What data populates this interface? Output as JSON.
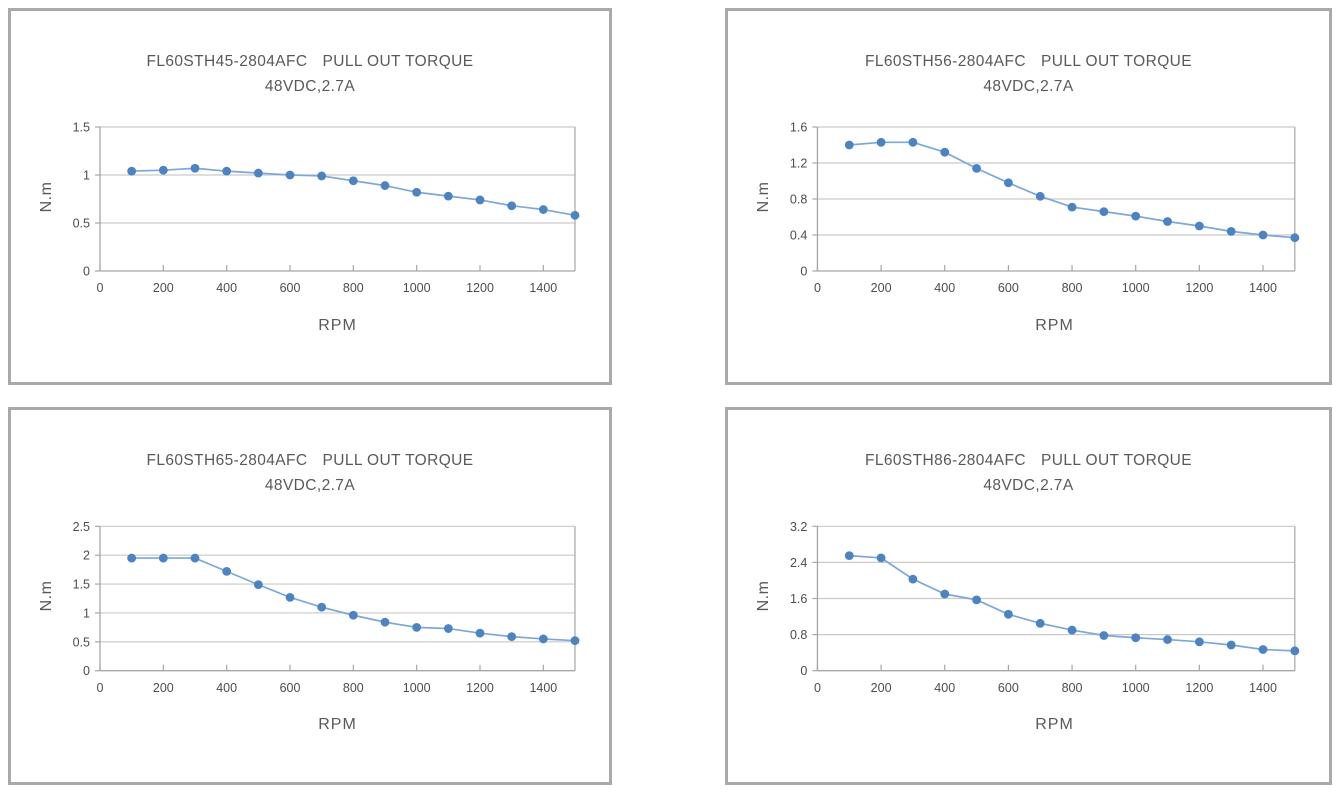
{
  "page": {
    "background": "#ffffff",
    "grid_layout": "2x2 chart panels"
  },
  "style": {
    "panel_border_color": "#a9a9ad",
    "grid_color": "#c9c9c9",
    "axis_color": "#a6a6a6",
    "line_color": "#7aa8d8",
    "marker_color": "#4e83bf",
    "title_color": "#595959",
    "tick_color": "#4d4d4d"
  },
  "chart_data": [
    {
      "type": "line",
      "model": "FL60STH45-2804AFC",
      "title": "PULL OUT TORQUE",
      "subtitle": "48VDC,2.7A",
      "xlabel": "RPM",
      "ylabel": "N.m",
      "legend": "none",
      "grid": true,
      "marker": "circle",
      "x": [
        100,
        200,
        300,
        400,
        500,
        600,
        700,
        800,
        900,
        1000,
        1100,
        1200,
        1300,
        1400,
        1500
      ],
      "values": [
        1.04,
        1.05,
        1.07,
        1.04,
        1.02,
        1.0,
        0.99,
        0.94,
        0.89,
        0.82,
        0.78,
        0.74,
        0.68,
        0.64,
        0.58
      ],
      "xlim": [
        0,
        1500
      ],
      "ylim": [
        0,
        1.5
      ],
      "xticks": [
        0,
        200,
        400,
        600,
        800,
        1000,
        1200,
        1400
      ],
      "xtick_labels": [
        "0",
        "200",
        "400",
        "600",
        "800",
        "1000",
        "1200",
        "1400"
      ],
      "yticks": [
        0,
        0.5,
        1,
        1.5
      ],
      "ytick_labels": [
        "0",
        "0.5",
        "1",
        "1.5"
      ]
    },
    {
      "type": "line",
      "model": "FL60STH56-2804AFC",
      "title": "PULL OUT TORQUE",
      "subtitle": "48VDC,2.7A",
      "xlabel": "RPM",
      "ylabel": "N.m",
      "legend": "none",
      "grid": true,
      "marker": "circle",
      "x": [
        100,
        200,
        300,
        400,
        500,
        600,
        700,
        800,
        900,
        1000,
        1100,
        1200,
        1300,
        1400,
        1500
      ],
      "values": [
        1.4,
        1.43,
        1.43,
        1.32,
        1.14,
        0.98,
        0.83,
        0.71,
        0.66,
        0.61,
        0.55,
        0.5,
        0.44,
        0.4,
        0.37
      ],
      "xlim": [
        0,
        1500
      ],
      "ylim": [
        0,
        1.6
      ],
      "xticks": [
        0,
        200,
        400,
        600,
        800,
        1000,
        1200,
        1400
      ],
      "xtick_labels": [
        "0",
        "200",
        "400",
        "600",
        "800",
        "1000",
        "1200",
        "1400"
      ],
      "yticks": [
        0,
        0.4,
        0.8,
        1.2,
        1.6
      ],
      "ytick_labels": [
        "0",
        "0.4",
        "0.8",
        "1.2",
        "1.6"
      ]
    },
    {
      "type": "line",
      "model": "FL60STH65-2804AFC",
      "title": "PULL OUT TORQUE",
      "subtitle": "48VDC,2.7A",
      "xlabel": "RPM",
      "ylabel": "N.m",
      "legend": "none",
      "grid": true,
      "marker": "circle",
      "x": [
        100,
        200,
        300,
        400,
        500,
        600,
        700,
        800,
        900,
        1000,
        1100,
        1200,
        1300,
        1400,
        1500
      ],
      "values": [
        1.95,
        1.95,
        1.95,
        1.72,
        1.49,
        1.27,
        1.1,
        0.96,
        0.84,
        0.75,
        0.73,
        0.65,
        0.59,
        0.55,
        0.52
      ],
      "xlim": [
        0,
        1500
      ],
      "ylim": [
        0,
        2.5
      ],
      "xticks": [
        0,
        200,
        400,
        600,
        800,
        1000,
        1200,
        1400
      ],
      "xtick_labels": [
        "0",
        "200",
        "400",
        "600",
        "800",
        "1000",
        "1200",
        "1400"
      ],
      "yticks": [
        0,
        0.5,
        1,
        1.5,
        2,
        2.5
      ],
      "ytick_labels": [
        "0",
        "0.5",
        "1",
        "1.5",
        "2",
        "2.5"
      ]
    },
    {
      "type": "line",
      "model": "FL60STH86-2804AFC",
      "title": "PULL OUT TORQUE",
      "subtitle": "48VDC,2.7A",
      "xlabel": "RPM",
      "ylabel": "N.m",
      "legend": "none",
      "grid": true,
      "marker": "circle",
      "x": [
        100,
        200,
        300,
        400,
        500,
        600,
        700,
        800,
        900,
        1000,
        1100,
        1200,
        1300,
        1400,
        1500
      ],
      "values": [
        2.55,
        2.5,
        2.03,
        1.7,
        1.57,
        1.25,
        1.05,
        0.9,
        0.78,
        0.73,
        0.69,
        0.64,
        0.57,
        0.47,
        0.44
      ],
      "xlim": [
        0,
        1500
      ],
      "ylim": [
        0,
        3.2
      ],
      "xticks": [
        0,
        200,
        400,
        600,
        800,
        1000,
        1200,
        1400
      ],
      "xtick_labels": [
        "0",
        "200",
        "400",
        "600",
        "800",
        "1000",
        "1200",
        "1400"
      ],
      "yticks": [
        0,
        0.8,
        1.6,
        2.4,
        3.2
      ],
      "ytick_labels": [
        "0",
        "0.8",
        "1.6",
        "2.4",
        "3.2"
      ]
    }
  ]
}
